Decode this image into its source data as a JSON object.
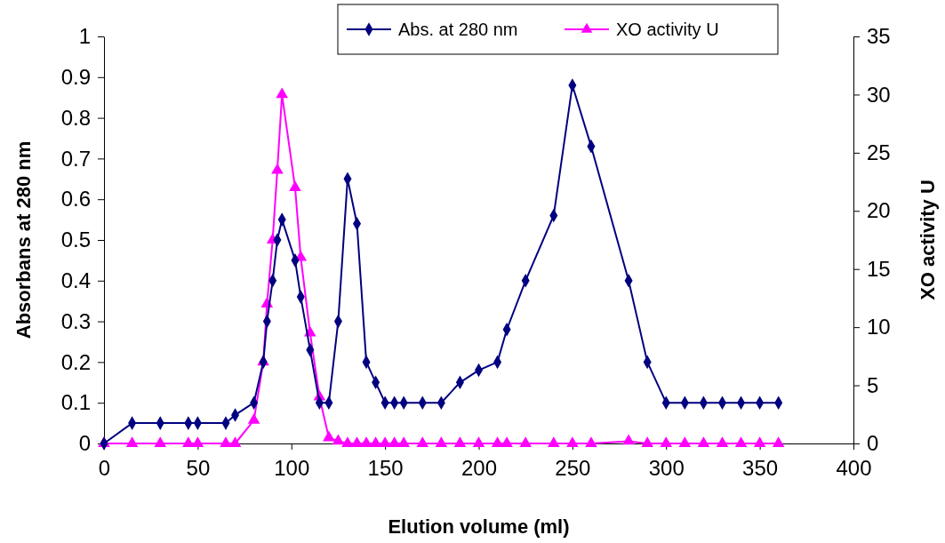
{
  "chart_data": {
    "type": "line",
    "xlabel": "Elution volume (ml)",
    "ylabel": "Absorbans at 280 nm",
    "y2label": "XO activity U",
    "x": [
      0,
      15,
      30,
      45,
      50,
      65,
      70,
      80,
      85,
      87,
      90,
      92.5,
      95,
      102,
      105,
      110,
      115,
      120,
      125,
      130,
      135,
      140,
      145,
      150,
      155,
      160,
      170,
      180,
      190,
      200,
      210,
      215,
      225,
      240,
      250,
      260,
      280,
      290,
      300,
      310,
      320,
      330,
      340,
      350,
      360
    ],
    "series": [
      {
        "name": "Abs. at 280 nm",
        "color": "#000080",
        "marker": "diamond",
        "values": [
          0,
          0.05,
          0.05,
          0.05,
          0.05,
          0.05,
          0.07,
          0.1,
          0.2,
          0.3,
          0.4,
          0.5,
          0.55,
          0.45,
          0.36,
          0.23,
          0.1,
          0.1,
          0.3,
          0.65,
          0.54,
          0.2,
          0.15,
          0.1,
          0.1,
          0.1,
          0.1,
          0.1,
          0.15,
          0.18,
          0.2,
          0.28,
          0.4,
          0.56,
          0.88,
          0.73,
          0.4,
          0.2,
          0.1,
          0.1,
          0.1,
          0.1,
          0.1,
          0.1,
          0.1
        ]
      },
      {
        "name": "XO activity U",
        "color": "#ff00ff",
        "marker": "triangle",
        "axis": "y2",
        "values": [
          0,
          0,
          0,
          0,
          0,
          0,
          0,
          2,
          7,
          12,
          17.5,
          23.5,
          30,
          22,
          16,
          9.5,
          4,
          0.5,
          0.2,
          0,
          0,
          0,
          0,
          0,
          0,
          0,
          0,
          0,
          0,
          0,
          0,
          0,
          0,
          0,
          0,
          0,
          0.2,
          0,
          0,
          0,
          0,
          0,
          0,
          0,
          0
        ]
      }
    ],
    "xlim": [
      0,
      400
    ],
    "xticks": [
      0,
      50,
      100,
      150,
      200,
      250,
      300,
      350,
      400
    ],
    "ylim": [
      0,
      1
    ],
    "yticks": [
      0,
      0.1,
      0.2,
      0.3,
      0.4,
      0.5,
      0.6,
      0.7,
      0.8,
      0.9,
      1
    ],
    "y2lim": [
      0,
      35
    ],
    "y2ticks": [
      0,
      5,
      10,
      15,
      20,
      25,
      30,
      35
    ],
    "grid": false,
    "legend": "top",
    "line_style": "solid"
  }
}
